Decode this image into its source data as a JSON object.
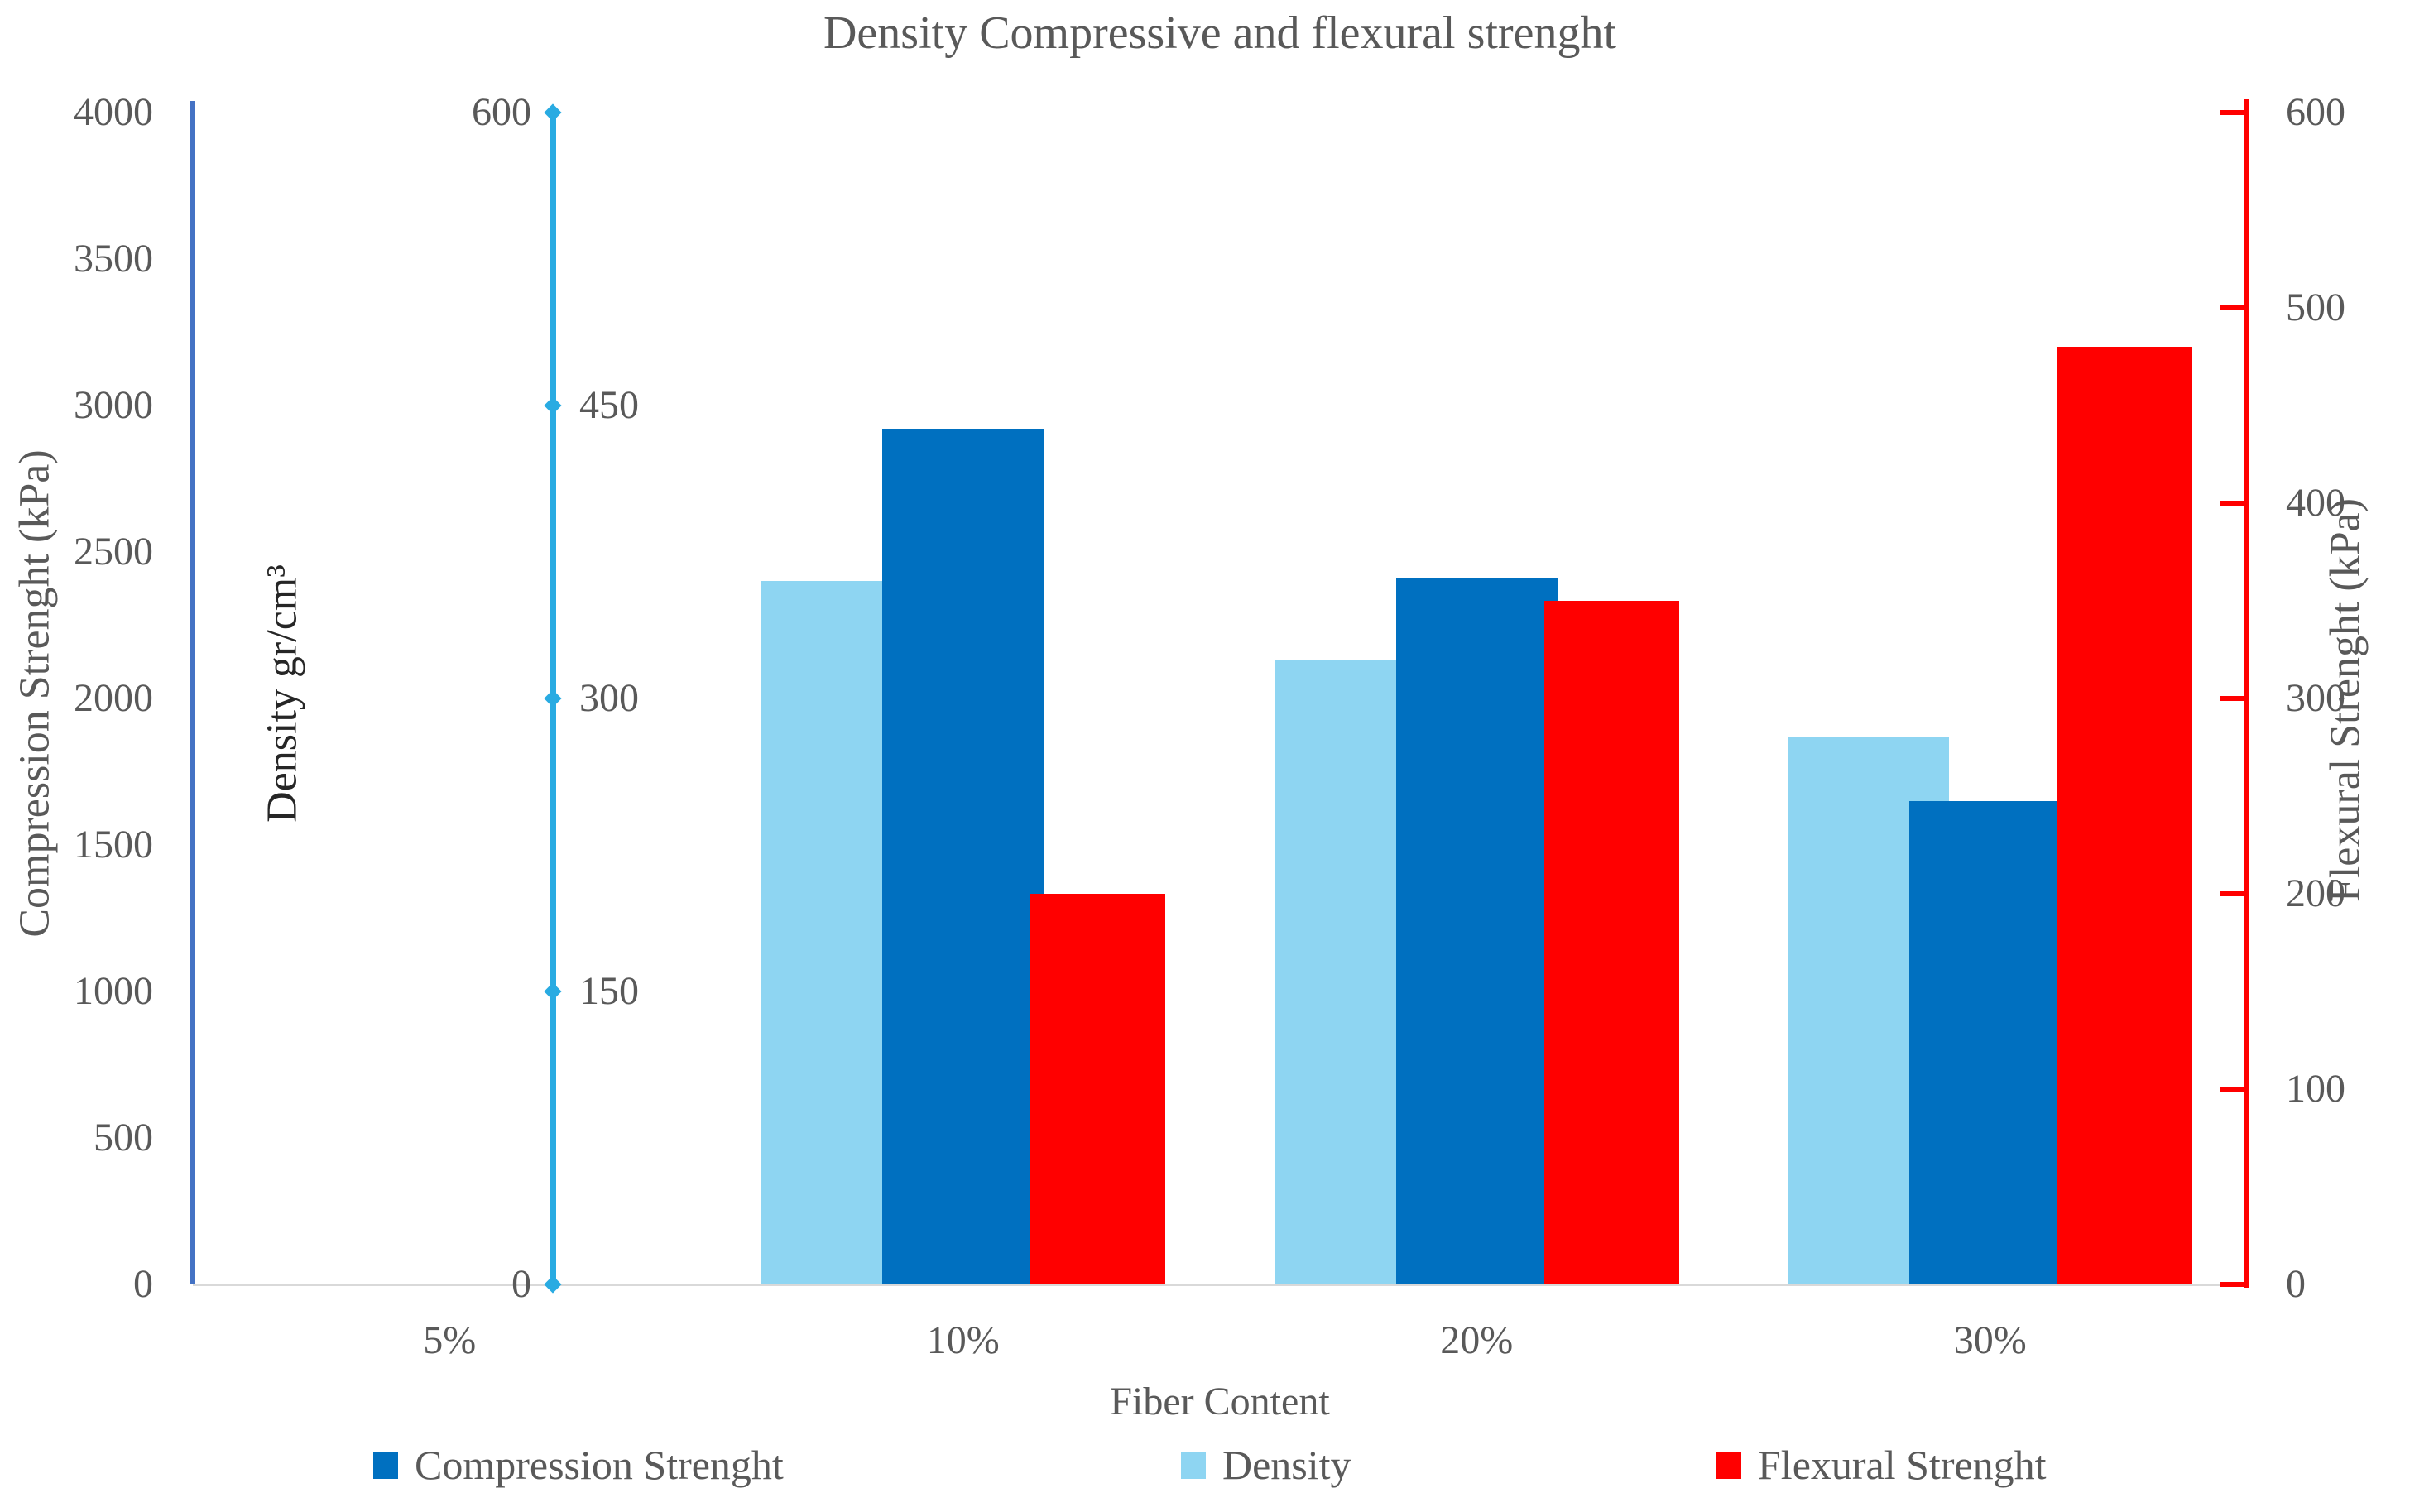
{
  "title": "Density Compressive and  flexural strenght",
  "axes": {
    "left": {
      "title": "Compression  Strenght (kPa)",
      "max": 4000,
      "ticks": [
        4000,
        3500,
        3000,
        2500,
        2000,
        1500,
        1000,
        500,
        0
      ],
      "line_color": "#4472C4"
    },
    "density": {
      "title": "Density gr/cm³",
      "max": 600,
      "ticks": [
        600,
        450,
        300,
        150,
        0
      ],
      "line_color": "#29ABE2"
    },
    "right": {
      "title": "Flexural  Strenght (kPa)",
      "max": 600,
      "ticks": [
        600,
        500,
        400,
        300,
        200,
        100,
        0
      ],
      "line_color": "#FF0000"
    }
  },
  "x_axis": {
    "title": "Fiber Content",
    "categories": [
      "5%",
      "10%",
      "20%",
      "30%"
    ]
  },
  "legend": [
    {
      "label": "Compression Strenght",
      "color": "#0070C0"
    },
    {
      "label": "Density",
      "color": "#8ED5F2"
    },
    {
      "label": "Flexural Strenght",
      "color": "#FF0000"
    }
  ],
  "colors": {
    "compression_bar": "#0070C0",
    "density_bar": "#8ED5F2",
    "flexural_bar": "#FF0000",
    "left_axis": "#4472C4",
    "density_axis": "#29ABE2",
    "right_axis": "#FF0000",
    "baseline": "#D9D9D9",
    "text": "#595959",
    "density_title_text": "#262626"
  },
  "chart_data": {
    "type": "bar",
    "title": "Density Compressive and  flexural strenght",
    "categories": [
      "5%",
      "10%",
      "20%",
      "30%"
    ],
    "series": [
      {
        "name": "Compression Strenght",
        "role": "compression",
        "axis": "left",
        "color": "#0070C0",
        "values": [
          0,
          2920,
          2410,
          1650
        ]
      },
      {
        "name": "Density",
        "role": "density",
        "axis": "density",
        "color": "#8ED5F2",
        "values": [
          0,
          360,
          320,
          280
        ]
      },
      {
        "name": "Flexural Strenght",
        "role": "flexural",
        "axis": "right",
        "color": "#FF0000",
        "values": [
          0,
          200,
          350,
          480
        ]
      }
    ],
    "axis_ranges": {
      "left": [
        0,
        4000
      ],
      "density": [
        0,
        600
      ],
      "right": [
        0,
        600
      ]
    },
    "xlabel": "Fiber Content",
    "ylabel_left": "Compression Strenght (kPa)",
    "ylabel_inner": "Density gr/cm³",
    "ylabel_right": "Flexural Strenght (kPa)",
    "grid": false,
    "legend_position": "bottom"
  }
}
